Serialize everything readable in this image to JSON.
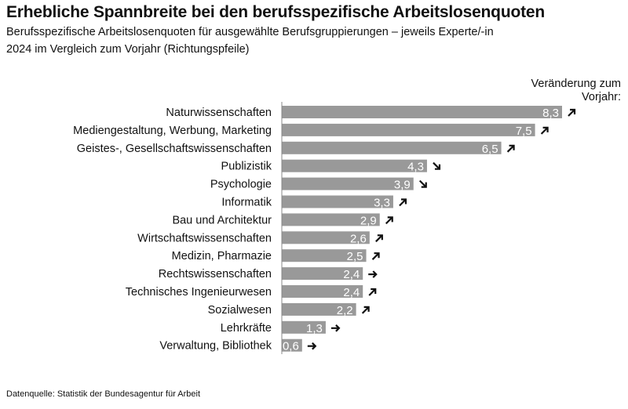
{
  "chart_data": {
    "type": "bar",
    "orientation": "horizontal",
    "title": "Erhebliche Spannbreite bei den berufsspezifische Arbeitslosenquoten",
    "subtitle_lines": [
      "Berufsspezifische Arbeitslosenquoten für ausgewählte Berufsgruppierungen – jeweils Experte/-in",
      "2024 im Vergleich zum Vorjahr (Richtungspfeile)"
    ],
    "legend_title_lines": [
      "Veränderung zum",
      "Vorjahr:"
    ],
    "source": "Datenquelle: Statistik der Bundesagentur für Arbeit",
    "categories": [
      "Naturwissenschaften",
      "Mediengestaltung, Werbung, Marketing",
      "Geistes-, Gesellschaftswissenschaften",
      "Publizistik",
      "Psychologie",
      "Informatik",
      "Bau und Architektur",
      "Wirtschaftswissenschaften",
      "Medizin, Pharmazie",
      "Rechtswissenschaften",
      "Technisches Ingenieurwesen",
      "Sozialwesen",
      "Lehrkräfte",
      "Verwaltung, Bibliothek"
    ],
    "values": [
      8.3,
      7.5,
      6.5,
      4.3,
      3.9,
      3.3,
      2.9,
      2.6,
      2.5,
      2.4,
      2.4,
      2.2,
      1.3,
      0.6
    ],
    "value_labels": [
      "8,3",
      "7,5",
      "6,5",
      "4,3",
      "3,9",
      "3,3",
      "2,9",
      "2,6",
      "2,5",
      "2,4",
      "2,4",
      "2,2",
      "1,3",
      "0,6"
    ],
    "trend": [
      "up",
      "up",
      "up",
      "down",
      "down",
      "up",
      "up",
      "up",
      "up",
      "flat",
      "up",
      "up",
      "flat",
      "flat"
    ],
    "xlim": [
      0,
      8.3
    ],
    "bar_color": "#999999",
    "arrow_color": "#111111"
  }
}
